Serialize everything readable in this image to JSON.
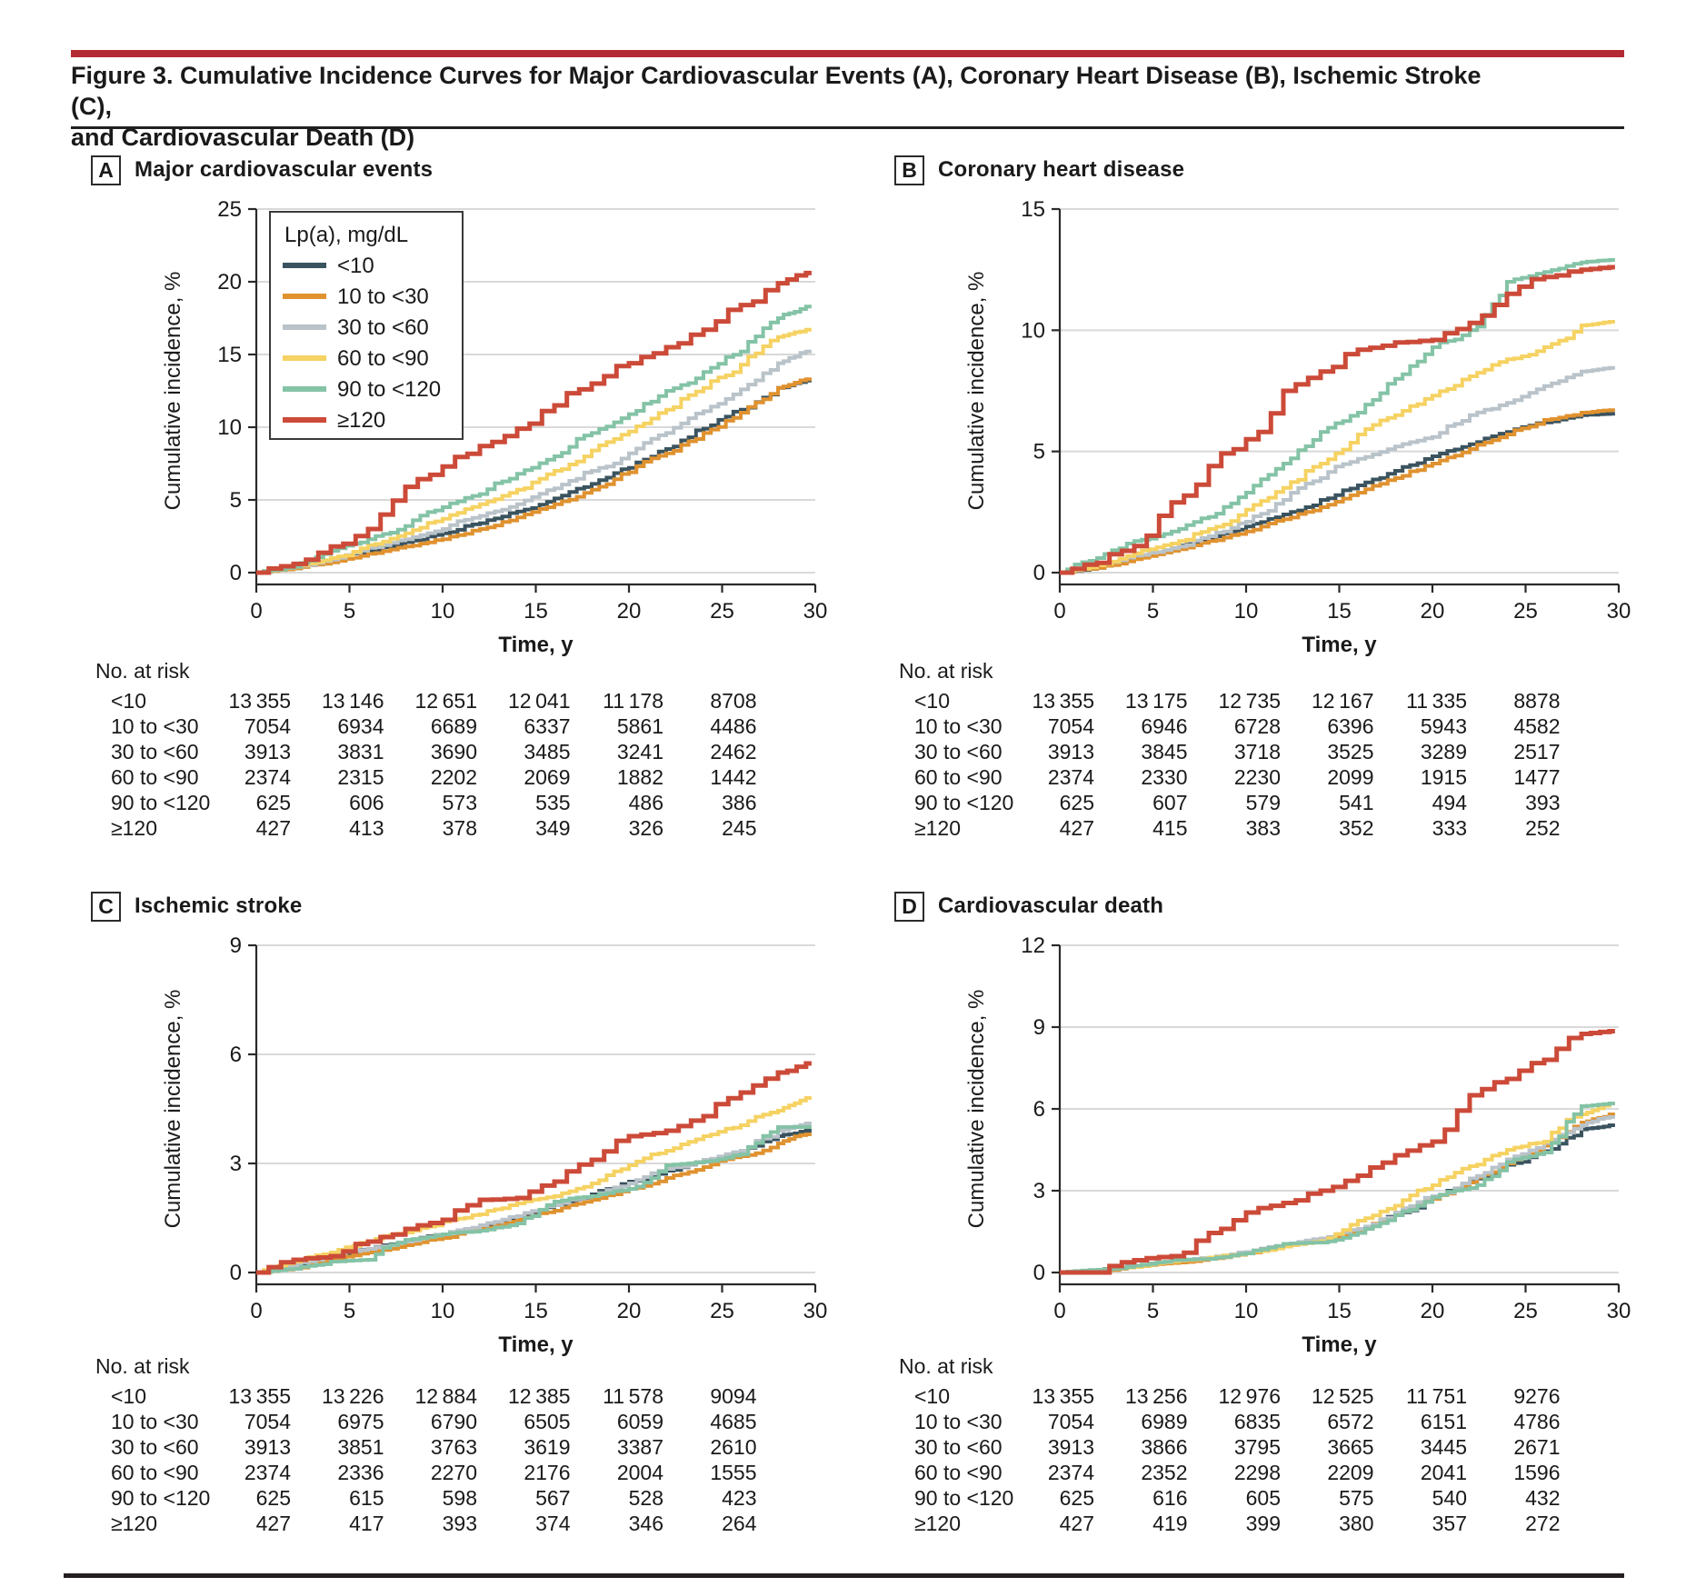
{
  "header": {
    "title_line1": "Figure 3. Cumulative Incidence Curves for Major Cardiovascular Events (A), Coronary Heart Disease (B), Ischemic Stroke (C),",
    "title_line2": "and Cardiovascular Death (D)"
  },
  "labels": {
    "no_at_risk": "No. at risk",
    "y_axis": "Cumulative incidence, %",
    "x_axis": "Time, y"
  },
  "legend": {
    "title": "Lp(a), mg/dL"
  },
  "colors": {
    "accent_bar": "#b52b35",
    "rule": "#231f20",
    "grid": "#d9d9d9",
    "axis": "#2a2a2a",
    "navy": "#3a535f",
    "orange": "#e0922f",
    "gray": "#b9c3c9",
    "yellow": "#f5d262",
    "teal": "#84c3a6",
    "red": "#cc4a38"
  },
  "chart_data": [
    {
      "type": "line",
      "letter": "A",
      "title": "Major cardiovascular events",
      "xlabel": "Time, y",
      "ylabel": "Cumulative incidence, %",
      "xlim": [
        0,
        30
      ],
      "ylim": [
        0,
        25
      ],
      "xticks": [
        0,
        5,
        10,
        15,
        20,
        25,
        30
      ],
      "yticks": [
        0,
        5,
        10,
        15,
        20,
        25
      ],
      "grid": "horizontal",
      "legend_position": "upper-left-inset",
      "x": [
        0,
        2,
        4,
        6,
        8,
        10,
        12,
        14,
        16,
        18,
        20,
        22,
        24,
        26,
        28,
        29.5
      ],
      "series": [
        {
          "name": "<10",
          "color": "#3a535f",
          "values": [
            0,
            0.3,
            0.8,
            1.5,
            2.1,
            2.7,
            3.4,
            4.2,
            5.1,
            6.1,
            7.2,
            8.5,
            9.9,
            11.2,
            12.7,
            13.2
          ]
        },
        {
          "name": "10 to <30",
          "color": "#e0922f",
          "values": [
            0,
            0.3,
            0.7,
            1.3,
            1.8,
            2.3,
            3.0,
            3.8,
            4.7,
            5.7,
            6.9,
            8.2,
            9.6,
            11.0,
            12.7,
            13.3
          ]
        },
        {
          "name": "30 to <60",
          "color": "#b9c3c9",
          "values": [
            0,
            0.4,
            0.9,
            1.7,
            2.3,
            3.0,
            3.9,
            4.7,
            5.8,
            7.0,
            8.2,
            9.6,
            11.1,
            12.6,
            14.4,
            15.2
          ]
        },
        {
          "name": "60 to <90",
          "color": "#f5d262",
          "values": [
            0,
            0.4,
            1.0,
            1.9,
            2.7,
            3.7,
            4.7,
            5.7,
            7.0,
            8.4,
            9.7,
            11.2,
            12.7,
            14.3,
            16.2,
            16.7
          ]
        },
        {
          "name": "90 to <120",
          "color": "#84c3a6",
          "values": [
            0,
            0.4,
            1.5,
            2.3,
            3.2,
            4.5,
            5.4,
            6.8,
            8.0,
            9.6,
            10.9,
            12.5,
            13.8,
            15.2,
            17.5,
            18.3
          ]
        },
        {
          "name": "≥120",
          "color": "#cc4a38",
          "values": [
            0,
            0.6,
            1.8,
            3.0,
            5.9,
            7.3,
            8.7,
            9.9,
            11.5,
            13.0,
            14.4,
            15.5,
            16.7,
            18.4,
            19.9,
            20.6
          ]
        }
      ],
      "risk_table": {
        "rows": [
          {
            "label": "<10",
            "values": [
              "13 355",
              "13 146",
              "12 651",
              "12 041",
              "11 178",
              "8708"
            ]
          },
          {
            "label": "10 to <30",
            "values": [
              "7054",
              "6934",
              "6689",
              "6337",
              "5861",
              "4486"
            ]
          },
          {
            "label": "30 to <60",
            "values": [
              "3913",
              "3831",
              "3690",
              "3485",
              "3241",
              "2462"
            ]
          },
          {
            "label": "60 to <90",
            "values": [
              "2374",
              "2315",
              "2202",
              "2069",
              "1882",
              "1442"
            ]
          },
          {
            "label": "90 to <120",
            "values": [
              "625",
              "606",
              "573",
              "535",
              "486",
              "386"
            ]
          },
          {
            "label": "≥120",
            "values": [
              "427",
              "413",
              "378",
              "349",
              "326",
              "245"
            ]
          }
        ]
      }
    },
    {
      "type": "line",
      "letter": "B",
      "title": "Coronary heart disease",
      "xlabel": "Time, y",
      "ylabel": "Cumulative incidence, %",
      "xlim": [
        0,
        30
      ],
      "ylim": [
        0,
        15
      ],
      "xticks": [
        0,
        5,
        10,
        15,
        20,
        25,
        30
      ],
      "yticks": [
        0,
        5,
        10,
        15
      ],
      "grid": "horizontal",
      "x": [
        0,
        2,
        4,
        6,
        8,
        10,
        12,
        14,
        16,
        18,
        20,
        22,
        24,
        26,
        28,
        29.5
      ],
      "series": [
        {
          "name": "<10",
          "color": "#3a535f",
          "values": [
            0,
            0.2,
            0.6,
            1.0,
            1.4,
            1.9,
            2.4,
            3.0,
            3.6,
            4.2,
            4.8,
            5.3,
            5.8,
            6.2,
            6.5,
            6.55
          ]
        },
        {
          "name": "10 to <30",
          "color": "#e0922f",
          "values": [
            0,
            0.2,
            0.55,
            0.9,
            1.3,
            1.7,
            2.2,
            2.7,
            3.3,
            3.9,
            4.5,
            5.1,
            5.7,
            6.3,
            6.6,
            6.7
          ]
        },
        {
          "name": "30 to <60",
          "color": "#b9c3c9",
          "values": [
            0,
            0.3,
            0.7,
            1.0,
            1.5,
            2.1,
            3.0,
            3.9,
            4.7,
            5.2,
            5.6,
            6.5,
            7.0,
            7.7,
            8.3,
            8.45
          ]
        },
        {
          "name": "60 to <90",
          "color": "#f5d262",
          "values": [
            0,
            0.3,
            0.8,
            1.2,
            1.8,
            2.6,
            3.5,
            4.5,
            5.7,
            6.5,
            7.3,
            8.1,
            8.8,
            9.3,
            10.2,
            10.35
          ]
        },
        {
          "name": "90 to <120",
          "color": "#84c3a6",
          "values": [
            0,
            0.6,
            1.3,
            1.7,
            2.3,
            3.3,
            4.5,
            5.8,
            6.6,
            8.0,
            9.3,
            10.0,
            12.0,
            12.4,
            12.8,
            12.9
          ]
        },
        {
          "name": "≥120",
          "color": "#cc4a38",
          "values": [
            0,
            0.4,
            1.1,
            2.9,
            4.4,
            5.5,
            7.5,
            8.3,
            9.2,
            9.5,
            9.6,
            10.3,
            11.5,
            12.2,
            12.5,
            12.6
          ]
        }
      ],
      "risk_table": {
        "rows": [
          {
            "label": "<10",
            "values": [
              "13 355",
              "13 175",
              "12 735",
              "12 167",
              "11 335",
              "8878"
            ]
          },
          {
            "label": "10 to <30",
            "values": [
              "7054",
              "6946",
              "6728",
              "6396",
              "5943",
              "4582"
            ]
          },
          {
            "label": "30 to <60",
            "values": [
              "3913",
              "3845",
              "3718",
              "3525",
              "3289",
              "2517"
            ]
          },
          {
            "label": "60 to <90",
            "values": [
              "2374",
              "2330",
              "2230",
              "2099",
              "1915",
              "1477"
            ]
          },
          {
            "label": "90 to <120",
            "values": [
              "625",
              "607",
              "579",
              "541",
              "494",
              "393"
            ]
          },
          {
            "label": "≥120",
            "values": [
              "427",
              "415",
              "383",
              "352",
              "333",
              "252"
            ]
          }
        ]
      }
    },
    {
      "type": "line",
      "letter": "C",
      "title": "Ischemic stroke",
      "xlabel": "Time, y",
      "ylabel": "Cumulative incidence, %",
      "xlim": [
        0,
        30
      ],
      "ylim": [
        0,
        9
      ],
      "xticks": [
        0,
        5,
        10,
        15,
        20,
        25,
        30
      ],
      "yticks": [
        0,
        3,
        6,
        9
      ],
      "grid": "horizontal",
      "x": [
        0,
        2,
        4,
        6,
        8,
        10,
        12,
        14,
        16,
        18,
        20,
        22,
        24,
        26,
        28,
        29.5
      ],
      "series": [
        {
          "name": "<10",
          "color": "#3a535f",
          "values": [
            0,
            0.2,
            0.45,
            0.65,
            0.85,
            1.05,
            1.25,
            1.55,
            1.85,
            2.15,
            2.5,
            2.8,
            3.05,
            3.35,
            3.75,
            3.9
          ]
        },
        {
          "name": "10 to <30",
          "color": "#e0922f",
          "values": [
            0,
            0.1,
            0.35,
            0.55,
            0.75,
            0.95,
            1.2,
            1.45,
            1.7,
            2.0,
            2.3,
            2.6,
            2.9,
            3.2,
            3.55,
            3.8
          ]
        },
        {
          "name": "30 to <60",
          "color": "#b9c3c9",
          "values": [
            0,
            0.2,
            0.5,
            0.65,
            0.85,
            1.05,
            1.3,
            1.55,
            1.85,
            2.1,
            2.45,
            2.85,
            3.1,
            3.35,
            3.9,
            4.1
          ]
        },
        {
          "name": "60 to <90",
          "color": "#f5d262",
          "values": [
            0,
            0.3,
            0.55,
            0.85,
            1.1,
            1.4,
            1.6,
            1.9,
            2.1,
            2.45,
            2.95,
            3.35,
            3.75,
            4.05,
            4.45,
            4.8
          ]
        },
        {
          "name": "90 to <120",
          "color": "#84c3a6",
          "values": [
            0,
            0.1,
            0.3,
            0.35,
            0.9,
            1.05,
            1.15,
            1.35,
            1.95,
            2.1,
            2.3,
            2.95,
            3.05,
            3.25,
            4.0,
            4.0
          ]
        },
        {
          "name": "≥120",
          "color": "#cc4a38",
          "values": [
            0,
            0.35,
            0.45,
            0.85,
            1.2,
            1.45,
            2.0,
            2.05,
            2.5,
            3.1,
            3.75,
            3.9,
            4.3,
            4.95,
            5.5,
            5.75
          ]
        }
      ],
      "risk_table": {
        "rows": [
          {
            "label": "<10",
            "values": [
              "13 355",
              "13 226",
              "12 884",
              "12 385",
              "11 578",
              "9094"
            ]
          },
          {
            "label": "10 to <30",
            "values": [
              "7054",
              "6975",
              "6790",
              "6505",
              "6059",
              "4685"
            ]
          },
          {
            "label": "30 to <60",
            "values": [
              "3913",
              "3851",
              "3763",
              "3619",
              "3387",
              "2610"
            ]
          },
          {
            "label": "60 to <90",
            "values": [
              "2374",
              "2336",
              "2270",
              "2176",
              "2004",
              "1555"
            ]
          },
          {
            "label": "90 to <120",
            "values": [
              "625",
              "615",
              "598",
              "567",
              "528",
              "423"
            ]
          },
          {
            "label": "≥120",
            "values": [
              "427",
              "417",
              "393",
              "374",
              "346",
              "264"
            ]
          }
        ]
      }
    },
    {
      "type": "line",
      "letter": "D",
      "title": "Cardiovascular death",
      "xlabel": "Time, y",
      "ylabel": "Cumulative incidence, %",
      "xlim": [
        0,
        30
      ],
      "ylim": [
        0,
        12
      ],
      "xticks": [
        0,
        5,
        10,
        15,
        20,
        25,
        30
      ],
      "yticks": [
        0,
        3,
        6,
        9,
        12
      ],
      "grid": "horizontal",
      "x": [
        0,
        2,
        4,
        6,
        8,
        10,
        12,
        14,
        16,
        18,
        20,
        22,
        24,
        26,
        28,
        29.5
      ],
      "series": [
        {
          "name": "<10",
          "color": "#3a535f",
          "values": [
            0,
            0.1,
            0.25,
            0.4,
            0.55,
            0.75,
            1.0,
            1.2,
            1.55,
            2.1,
            2.7,
            3.35,
            3.95,
            4.45,
            5.25,
            5.4
          ]
        },
        {
          "name": "10 to <30",
          "color": "#e0922f",
          "values": [
            0,
            0.05,
            0.2,
            0.35,
            0.5,
            0.7,
            0.95,
            1.2,
            1.55,
            2.1,
            2.7,
            3.3,
            4.0,
            4.65,
            5.5,
            5.8
          ]
        },
        {
          "name": "30 to <60",
          "color": "#b9c3c9",
          "values": [
            0,
            0.1,
            0.25,
            0.4,
            0.55,
            0.75,
            1.0,
            1.25,
            1.6,
            2.2,
            2.8,
            3.45,
            4.15,
            4.75,
            5.4,
            5.7
          ]
        },
        {
          "name": "60 to <90",
          "color": "#f5d262",
          "values": [
            0,
            0.1,
            0.2,
            0.4,
            0.55,
            0.7,
            0.95,
            1.15,
            1.9,
            2.45,
            3.2,
            3.9,
            4.5,
            4.8,
            5.8,
            6.2
          ]
        },
        {
          "name": "90 to <120",
          "color": "#84c3a6",
          "values": [
            0,
            0.1,
            0.25,
            0.45,
            0.5,
            0.7,
            1.05,
            1.1,
            1.45,
            2.1,
            2.75,
            3.1,
            4.05,
            4.4,
            6.1,
            6.2
          ]
        },
        {
          "name": "≥120",
          "color": "#cc4a38",
          "values": [
            0,
            0,
            0.45,
            0.6,
            1.45,
            2.2,
            2.55,
            3.0,
            3.55,
            4.3,
            4.8,
            6.5,
            7.1,
            7.8,
            8.75,
            8.85
          ]
        }
      ],
      "risk_table": {
        "rows": [
          {
            "label": "<10",
            "values": [
              "13 355",
              "13 256",
              "12 976",
              "12 525",
              "11 751",
              "9276"
            ]
          },
          {
            "label": "10 to <30",
            "values": [
              "7054",
              "6989",
              "6835",
              "6572",
              "6151",
              "4786"
            ]
          },
          {
            "label": "30 to <60",
            "values": [
              "3913",
              "3866",
              "3795",
              "3665",
              "3445",
              "2671"
            ]
          },
          {
            "label": "60 to <90",
            "values": [
              "2374",
              "2352",
              "2298",
              "2209",
              "2041",
              "1596"
            ]
          },
          {
            "label": "90 to <120",
            "values": [
              "625",
              "616",
              "605",
              "575",
              "540",
              "432"
            ]
          },
          {
            "label": "≥120",
            "values": [
              "427",
              "419",
              "399",
              "380",
              "357",
              "272"
            ]
          }
        ]
      }
    }
  ]
}
